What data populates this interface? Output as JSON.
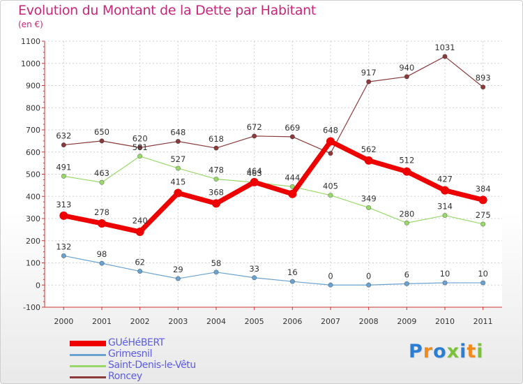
{
  "page": {
    "title": "Evolution du Montant de la Dette par Habitant",
    "subtitle": "(en €)",
    "logo_text": "Proxiti",
    "logo_colors": [
      "#2a7fd4",
      "#f08a1c",
      "#2a7fd4",
      "#7cc13a",
      "#2a7fd4",
      "#f08a1c",
      "#7cc13a"
    ]
  },
  "chart_data": {
    "type": "line",
    "title": "Evolution du Montant de la Dette par Habitant",
    "subtitle": "(en €)",
    "xlabel": "",
    "ylabel": "",
    "x": [
      "2000",
      "2001",
      "2002",
      "2003",
      "2004",
      "2005",
      "2006",
      "2007",
      "2008",
      "2009",
      "2010",
      "2011"
    ],
    "ylim": [
      -100,
      1100
    ],
    "yticks": [
      "-100",
      "0",
      "100",
      "200",
      "300",
      "400",
      "500",
      "600",
      "700",
      "800",
      "900",
      "1000",
      "1100"
    ],
    "grid": true,
    "legend_position": "bottom-left",
    "series": [
      {
        "name": "Roncey",
        "color": "#8a3a3a",
        "values": [
          632,
          650,
          620,
          648,
          618,
          672,
          669,
          594,
          917,
          940,
          1031,
          893
        ],
        "labels": [
          "632",
          "650",
          "620",
          "648",
          "618",
          "672",
          "669",
          "",
          "917",
          "940",
          "1031",
          "893"
        ]
      },
      {
        "name": "Saint-Denis-le-Vêtu",
        "color": "#99d96a",
        "values": [
          491,
          463,
          581,
          527,
          478,
          463,
          444,
          405,
          349,
          280,
          314,
          275
        ],
        "labels": [
          "491",
          "463",
          "581",
          "527",
          "478",
          "463",
          "444",
          "405",
          "349",
          "280",
          "314",
          "275"
        ]
      },
      {
        "name": "Grimesnil",
        "color": "#6aa2d2",
        "values": [
          132,
          98,
          62,
          29,
          58,
          33,
          16,
          0,
          0,
          6,
          10,
          10
        ],
        "labels": [
          "132",
          "98",
          "62",
          "29",
          "58",
          "33",
          "16",
          "0",
          "0",
          "6",
          "10",
          "10"
        ]
      },
      {
        "name": "GUéHéBERT",
        "color": "#ee0000",
        "values": [
          313,
          278,
          240,
          415,
          368,
          464,
          411,
          648,
          562,
          512,
          427,
          384
        ],
        "labels": [
          "313",
          "278",
          "240",
          "415",
          "368",
          "464",
          "",
          "648",
          "562",
          "512",
          "427",
          "384"
        ]
      }
    ],
    "legend": [
      "GUéHéBERT",
      "Grimesnil",
      "Saint-Denis-le-Vêtu",
      "Roncey"
    ]
  }
}
